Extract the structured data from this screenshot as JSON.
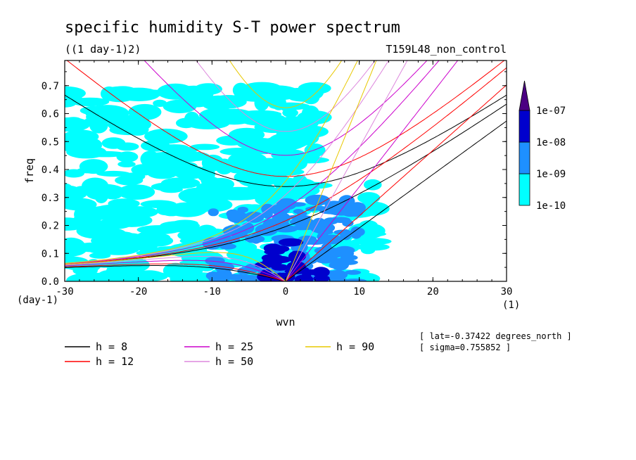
{
  "chart_data": {
    "type": "heatmap",
    "title": "specific humidity S-T power spectrum",
    "units_label": "((1 day-1)2)",
    "run_label": "T159L48_non_control",
    "xlabel": "wvn",
    "ylabel": "freq",
    "x_unit": "(1)",
    "y_unit": "(day-1)",
    "xlim": [
      -30,
      30
    ],
    "ylim": [
      0,
      0.79
    ],
    "xticks": [
      "-30",
      "-20",
      "-10",
      "0",
      "10",
      "20",
      "30"
    ],
    "yticks": [
      "0.0",
      "0.1",
      "0.2",
      "0.3",
      "0.4",
      "0.5",
      "0.6",
      "0.7"
    ],
    "colorbar": {
      "levels": [
        "1e-10",
        "1e-09",
        "1e-08",
        "1e-07"
      ],
      "colors": [
        "#00ffff",
        "#1e90ff",
        "#0000cd",
        "#4b0082"
      ],
      "extend": "max"
    },
    "shaded_regions": [
      {
        "level": "1e-10",
        "x": [
          -30,
          12
        ],
        "y": [
          0.0,
          0.7
        ],
        "note": "scattered patches"
      },
      {
        "level": "1e-09",
        "x": [
          -10,
          10
        ],
        "y": [
          0.0,
          0.3
        ]
      },
      {
        "level": "1e-08",
        "x": [
          -3,
          5
        ],
        "y": [
          0.0,
          0.15
        ]
      }
    ],
    "dispersion_curves": [
      {
        "name": "h =  8",
        "color": "#000000",
        "equiv_depth": 8
      },
      {
        "name": "h = 12",
        "color": "#ff0000",
        "equiv_depth": 12
      },
      {
        "name": "h = 25",
        "color": "#cc00cc",
        "equiv_depth": 25
      },
      {
        "name": "h = 50",
        "color": "#dd88dd",
        "equiv_depth": 50
      },
      {
        "name": "h = 90",
        "color": "#e8c800",
        "equiv_depth": 90
      }
    ],
    "annotations": [
      "[ lat=-0.37422 degrees_north ]",
      "[ sigma=0.755852 ]"
    ],
    "grid": false,
    "legend_position": "bottom"
  }
}
